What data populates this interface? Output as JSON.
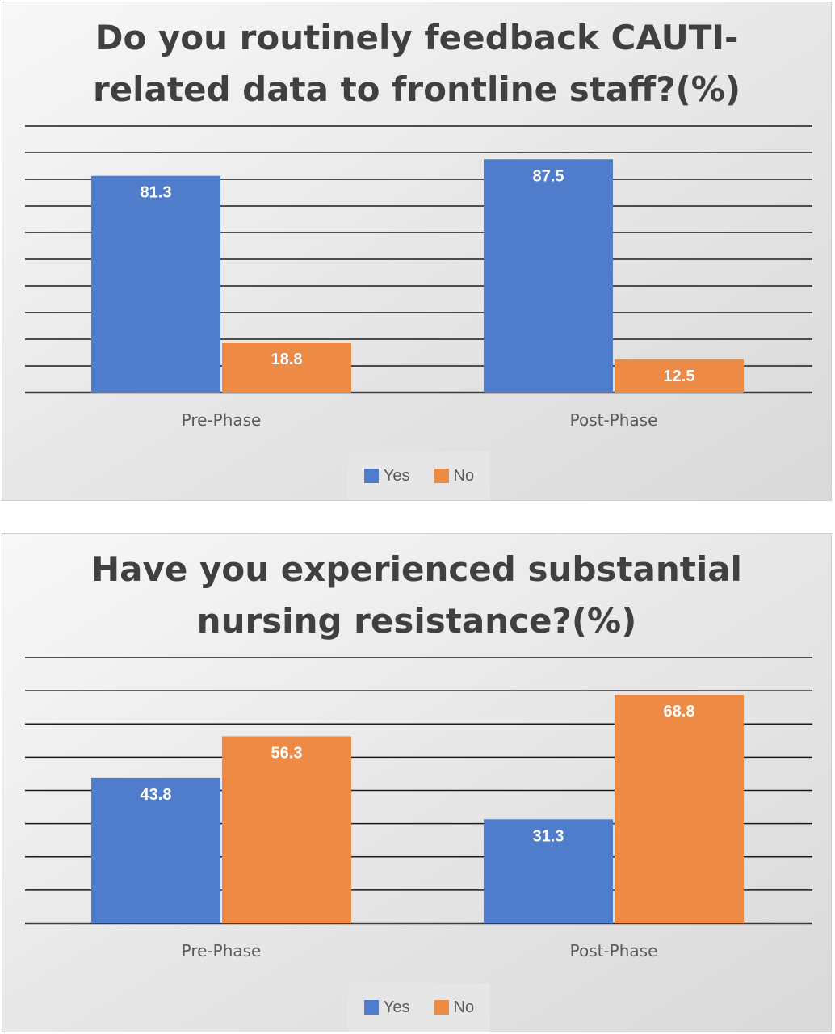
{
  "chart_data": [
    {
      "type": "bar",
      "title": "Do you routinely feedback CAUTI-related data to frontline staff?(%)",
      "categories": [
        "Pre-Phase",
        "Post-Phase"
      ],
      "series": [
        {
          "name": "Yes",
          "color": "#4f7ccb",
          "values": [
            81.3,
            87.5
          ]
        },
        {
          "name": "No",
          "color": "#ed8a45",
          "values": [
            18.8,
            12.5
          ]
        }
      ],
      "ylim": [
        0,
        100
      ],
      "gridlines": 10,
      "grid": true,
      "legend": "bottom"
    },
    {
      "type": "bar",
      "title": "Have you experienced substantial nursing resistance?(%)",
      "categories": [
        "Pre-Phase",
        "Post-Phase"
      ],
      "series": [
        {
          "name": "Yes",
          "color": "#4f7ccb",
          "values": [
            43.8,
            31.3
          ]
        },
        {
          "name": "No",
          "color": "#ed8a45",
          "values": [
            56.3,
            68.8
          ]
        }
      ],
      "ylim": [
        0,
        80
      ],
      "gridlines": 8,
      "grid": true,
      "legend": "bottom"
    }
  ]
}
